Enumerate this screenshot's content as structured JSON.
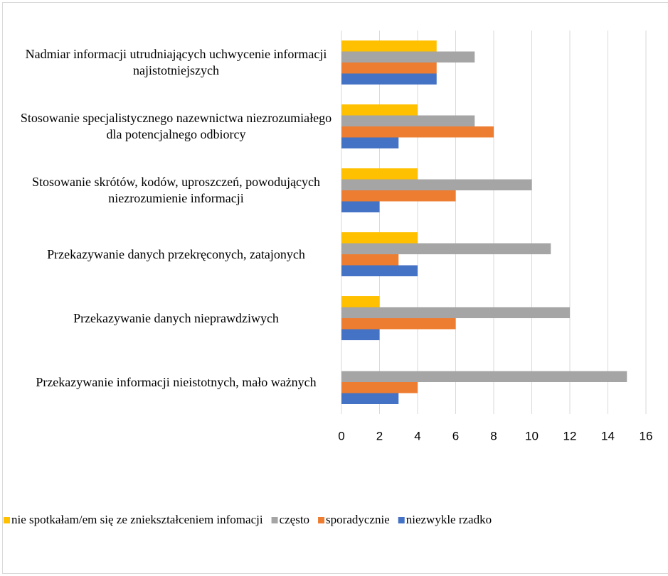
{
  "chart_data": {
    "type": "hbar",
    "categories": [
      "Nadmiar informacji utrudniających uchwycenie informacji najistotniejszych",
      "Stosowanie specjalistycznego nazewnictwa niezrozumiałego dla potencjalnego odbiorcy",
      "Stosowanie skrótów, kodów, uproszczeń, powodujących niezrozumienie informacji",
      "Przekazywanie danych przekręconych, zatajonych",
      "Przekazywanie danych nieprawdziwych",
      "Przekazywanie informacji nieistotnych, mało ważnych"
    ],
    "series": [
      {
        "name": "nie spotkałam/em się ze zniekształceniem infomacji",
        "color": "#ffc000",
        "values": [
          5,
          4,
          4,
          4,
          2,
          0
        ]
      },
      {
        "name": "często",
        "color": "#a5a5a5",
        "values": [
          7,
          7,
          10,
          11,
          12,
          15
        ]
      },
      {
        "name": "sporadycznie",
        "color": "#ed7d31",
        "values": [
          5,
          8,
          6,
          3,
          6,
          4
        ]
      },
      {
        "name": "niezwykle rzadko",
        "color": "#4472c4",
        "values": [
          5,
          3,
          2,
          4,
          2,
          3
        ]
      }
    ],
    "xlim": [
      0,
      16
    ],
    "xticks": [
      0,
      2,
      4,
      6,
      8,
      10,
      12,
      14,
      16
    ],
    "grid": true,
    "legend": "bottom"
  }
}
